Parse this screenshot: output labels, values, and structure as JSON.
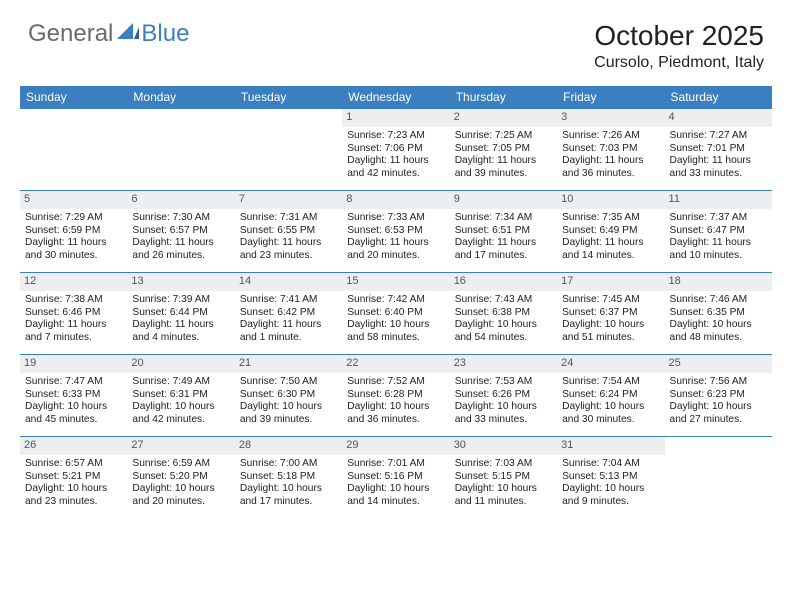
{
  "brand": {
    "part1": "General",
    "part2": "Blue",
    "color2": "#3a7fc0"
  },
  "title": "October 2025",
  "location": "Cursolo, Piedmont, Italy",
  "colors": {
    "header_bg": "#3a7fc0",
    "header_text": "#ffffff",
    "daynum_bg": "#eceeef",
    "daynum_text": "#555555",
    "row_border": "#3a7fc0",
    "text": "#222222",
    "background": "#ffffff"
  },
  "calendar": {
    "type": "table",
    "columns": [
      "Sunday",
      "Monday",
      "Tuesday",
      "Wednesday",
      "Thursday",
      "Friday",
      "Saturday"
    ],
    "cell_font_size": 10.2,
    "header_font_size": 12,
    "weeks": [
      [
        {
          "day": "",
          "lines": []
        },
        {
          "day": "",
          "lines": []
        },
        {
          "day": "",
          "lines": []
        },
        {
          "day": "1",
          "lines": [
            "Sunrise: 7:23 AM",
            "Sunset: 7:06 PM",
            "Daylight: 11 hours and 42 minutes."
          ]
        },
        {
          "day": "2",
          "lines": [
            "Sunrise: 7:25 AM",
            "Sunset: 7:05 PM",
            "Daylight: 11 hours and 39 minutes."
          ]
        },
        {
          "day": "3",
          "lines": [
            "Sunrise: 7:26 AM",
            "Sunset: 7:03 PM",
            "Daylight: 11 hours and 36 minutes."
          ]
        },
        {
          "day": "4",
          "lines": [
            "Sunrise: 7:27 AM",
            "Sunset: 7:01 PM",
            "Daylight: 11 hours and 33 minutes."
          ]
        }
      ],
      [
        {
          "day": "5",
          "lines": [
            "Sunrise: 7:29 AM",
            "Sunset: 6:59 PM",
            "Daylight: 11 hours and 30 minutes."
          ]
        },
        {
          "day": "6",
          "lines": [
            "Sunrise: 7:30 AM",
            "Sunset: 6:57 PM",
            "Daylight: 11 hours and 26 minutes."
          ]
        },
        {
          "day": "7",
          "lines": [
            "Sunrise: 7:31 AM",
            "Sunset: 6:55 PM",
            "Daylight: 11 hours and 23 minutes."
          ]
        },
        {
          "day": "8",
          "lines": [
            "Sunrise: 7:33 AM",
            "Sunset: 6:53 PM",
            "Daylight: 11 hours and 20 minutes."
          ]
        },
        {
          "day": "9",
          "lines": [
            "Sunrise: 7:34 AM",
            "Sunset: 6:51 PM",
            "Daylight: 11 hours and 17 minutes."
          ]
        },
        {
          "day": "10",
          "lines": [
            "Sunrise: 7:35 AM",
            "Sunset: 6:49 PM",
            "Daylight: 11 hours and 14 minutes."
          ]
        },
        {
          "day": "11",
          "lines": [
            "Sunrise: 7:37 AM",
            "Sunset: 6:47 PM",
            "Daylight: 11 hours and 10 minutes."
          ]
        }
      ],
      [
        {
          "day": "12",
          "lines": [
            "Sunrise: 7:38 AM",
            "Sunset: 6:46 PM",
            "Daylight: 11 hours and 7 minutes."
          ]
        },
        {
          "day": "13",
          "lines": [
            "Sunrise: 7:39 AM",
            "Sunset: 6:44 PM",
            "Daylight: 11 hours and 4 minutes."
          ]
        },
        {
          "day": "14",
          "lines": [
            "Sunrise: 7:41 AM",
            "Sunset: 6:42 PM",
            "Daylight: 11 hours and 1 minute."
          ]
        },
        {
          "day": "15",
          "lines": [
            "Sunrise: 7:42 AM",
            "Sunset: 6:40 PM",
            "Daylight: 10 hours and 58 minutes."
          ]
        },
        {
          "day": "16",
          "lines": [
            "Sunrise: 7:43 AM",
            "Sunset: 6:38 PM",
            "Daylight: 10 hours and 54 minutes."
          ]
        },
        {
          "day": "17",
          "lines": [
            "Sunrise: 7:45 AM",
            "Sunset: 6:37 PM",
            "Daylight: 10 hours and 51 minutes."
          ]
        },
        {
          "day": "18",
          "lines": [
            "Sunrise: 7:46 AM",
            "Sunset: 6:35 PM",
            "Daylight: 10 hours and 48 minutes."
          ]
        }
      ],
      [
        {
          "day": "19",
          "lines": [
            "Sunrise: 7:47 AM",
            "Sunset: 6:33 PM",
            "Daylight: 10 hours and 45 minutes."
          ]
        },
        {
          "day": "20",
          "lines": [
            "Sunrise: 7:49 AM",
            "Sunset: 6:31 PM",
            "Daylight: 10 hours and 42 minutes."
          ]
        },
        {
          "day": "21",
          "lines": [
            "Sunrise: 7:50 AM",
            "Sunset: 6:30 PM",
            "Daylight: 10 hours and 39 minutes."
          ]
        },
        {
          "day": "22",
          "lines": [
            "Sunrise: 7:52 AM",
            "Sunset: 6:28 PM",
            "Daylight: 10 hours and 36 minutes."
          ]
        },
        {
          "day": "23",
          "lines": [
            "Sunrise: 7:53 AM",
            "Sunset: 6:26 PM",
            "Daylight: 10 hours and 33 minutes."
          ]
        },
        {
          "day": "24",
          "lines": [
            "Sunrise: 7:54 AM",
            "Sunset: 6:24 PM",
            "Daylight: 10 hours and 30 minutes."
          ]
        },
        {
          "day": "25",
          "lines": [
            "Sunrise: 7:56 AM",
            "Sunset: 6:23 PM",
            "Daylight: 10 hours and 27 minutes."
          ]
        }
      ],
      [
        {
          "day": "26",
          "lines": [
            "Sunrise: 6:57 AM",
            "Sunset: 5:21 PM",
            "Daylight: 10 hours and 23 minutes."
          ]
        },
        {
          "day": "27",
          "lines": [
            "Sunrise: 6:59 AM",
            "Sunset: 5:20 PM",
            "Daylight: 10 hours and 20 minutes."
          ]
        },
        {
          "day": "28",
          "lines": [
            "Sunrise: 7:00 AM",
            "Sunset: 5:18 PM",
            "Daylight: 10 hours and 17 minutes."
          ]
        },
        {
          "day": "29",
          "lines": [
            "Sunrise: 7:01 AM",
            "Sunset: 5:16 PM",
            "Daylight: 10 hours and 14 minutes."
          ]
        },
        {
          "day": "30",
          "lines": [
            "Sunrise: 7:03 AM",
            "Sunset: 5:15 PM",
            "Daylight: 10 hours and 11 minutes."
          ]
        },
        {
          "day": "31",
          "lines": [
            "Sunrise: 7:04 AM",
            "Sunset: 5:13 PM",
            "Daylight: 10 hours and 9 minutes."
          ]
        },
        {
          "day": "",
          "lines": []
        }
      ]
    ]
  }
}
